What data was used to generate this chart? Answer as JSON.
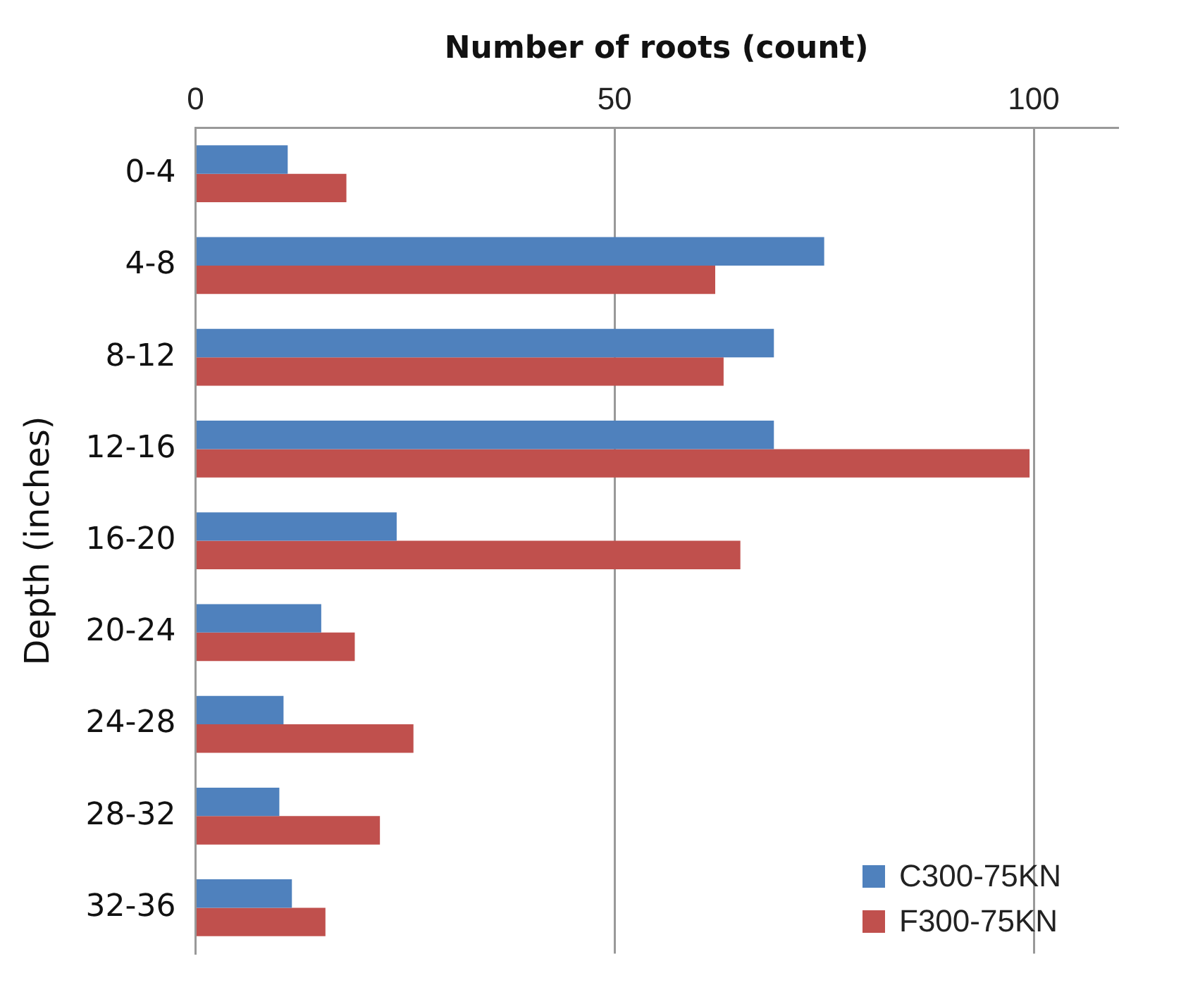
{
  "chart_data": {
    "type": "bar",
    "orientation": "horizontal",
    "xlabel": "Number of roots (count)",
    "ylabel": "Depth (inches)",
    "categories": [
      "0-4",
      "4-8",
      "8-12",
      "12-16",
      "16-20",
      "20-24",
      "24-28",
      "28-32",
      "32-36"
    ],
    "series": [
      {
        "name": "C300-75KN",
        "color": "#4f81bd",
        "values": [
          11,
          75,
          69,
          69,
          24,
          15,
          10.5,
          10,
          11.5
        ]
      },
      {
        "name": "F300-75KN",
        "color": "#c0504d",
        "values": [
          18,
          62,
          63,
          99.5,
          65,
          19,
          26,
          22,
          15.5
        ]
      }
    ],
    "xlim": [
      0,
      110
    ],
    "xticks": [
      0,
      50,
      100
    ],
    "grid": "x",
    "legend": "bottom right"
  }
}
